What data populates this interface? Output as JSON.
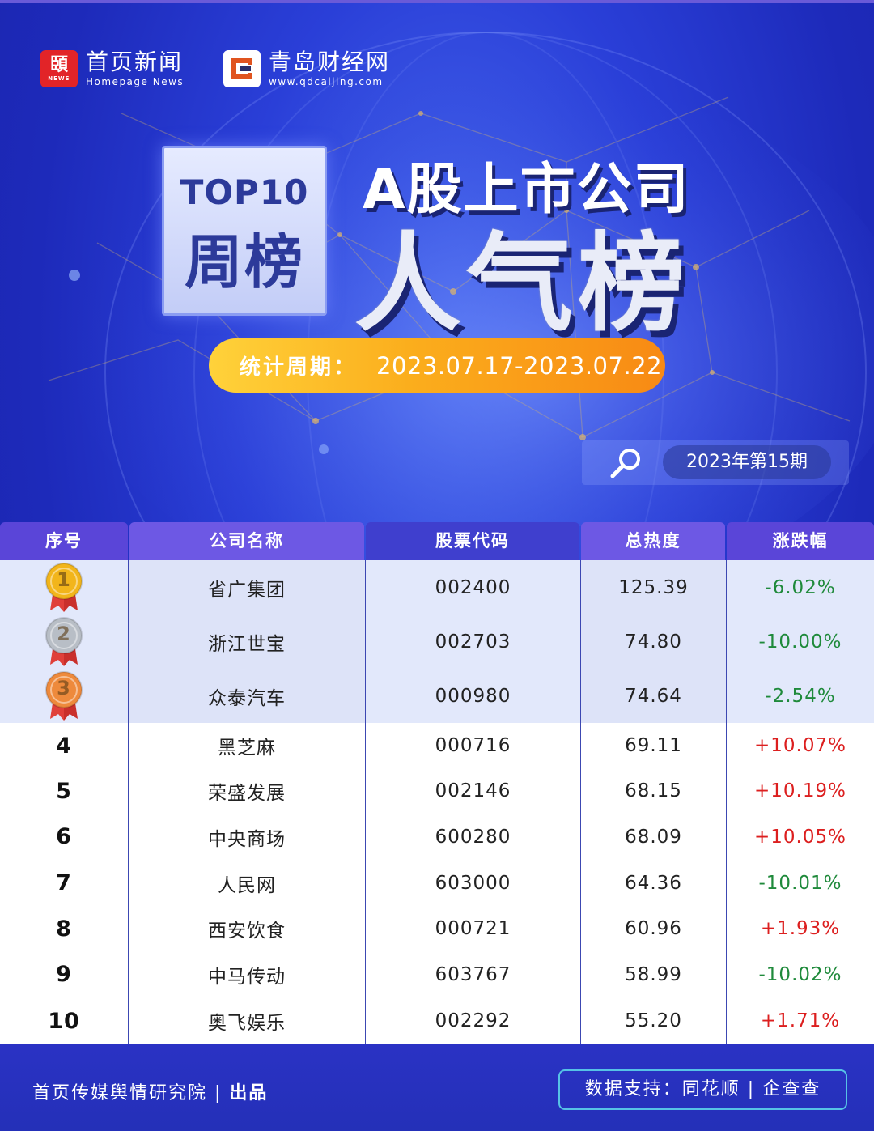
{
  "brands": [
    {
      "logo_text": "頣",
      "logo_sub": "NEWS",
      "cn": "首页新闻",
      "en": "Homepage News"
    },
    {
      "cn": "青岛财经网",
      "en": "www.qdcaijing.com"
    }
  ],
  "header": {
    "top10": "TOP10",
    "weekly": "周榜",
    "title_line1": "A股上市公司",
    "title_line2": "人气榜"
  },
  "period": {
    "label": "统计周期：",
    "value": "2023.07.17-2023.07.22"
  },
  "issue": "2023年第15期",
  "table": {
    "columns": [
      "序号",
      "公司名称",
      "股票代码",
      "总热度",
      "涨跌幅"
    ],
    "rows": [
      {
        "rank": "1",
        "name": "省广集团",
        "code": "002400",
        "heat": "125.39",
        "change": "-6.02%"
      },
      {
        "rank": "2",
        "name": "浙江世宝",
        "code": "002703",
        "heat": "74.80",
        "change": "-10.00%"
      },
      {
        "rank": "3",
        "name": "众泰汽车",
        "code": "000980",
        "heat": "74.64",
        "change": "-2.54%"
      },
      {
        "rank": "4",
        "name": "黑芝麻",
        "code": "000716",
        "heat": "69.11",
        "change": "+10.07%"
      },
      {
        "rank": "5",
        "name": "荣盛发展",
        "code": "002146",
        "heat": "68.15",
        "change": "+10.19%"
      },
      {
        "rank": "6",
        "name": "中央商场",
        "code": "600280",
        "heat": "68.09",
        "change": "+10.05%"
      },
      {
        "rank": "7",
        "name": "人民网",
        "code": "603000",
        "heat": "64.36",
        "change": "-10.01%"
      },
      {
        "rank": "8",
        "name": "西安饮食",
        "code": "000721",
        "heat": "60.96",
        "change": "+1.93%"
      },
      {
        "rank": "9",
        "name": "中马传动",
        "code": "603767",
        "heat": "58.99",
        "change": "-10.02%"
      },
      {
        "rank": "10",
        "name": "奥飞娱乐",
        "code": "002292",
        "heat": "55.20",
        "change": "+1.71%"
      }
    ]
  },
  "footer": {
    "left": "首页传媒舆情研究院",
    "left_sep": " | ",
    "left_bold": "出品",
    "right": "数据支持：同花顺 | 企查查"
  },
  "colors": {
    "positive": "#dc1f1f",
    "negative": "#1f8a3b",
    "gold": "#f2b51b",
    "silver": "#b8bec6",
    "bronze": "#ee8a3c"
  }
}
